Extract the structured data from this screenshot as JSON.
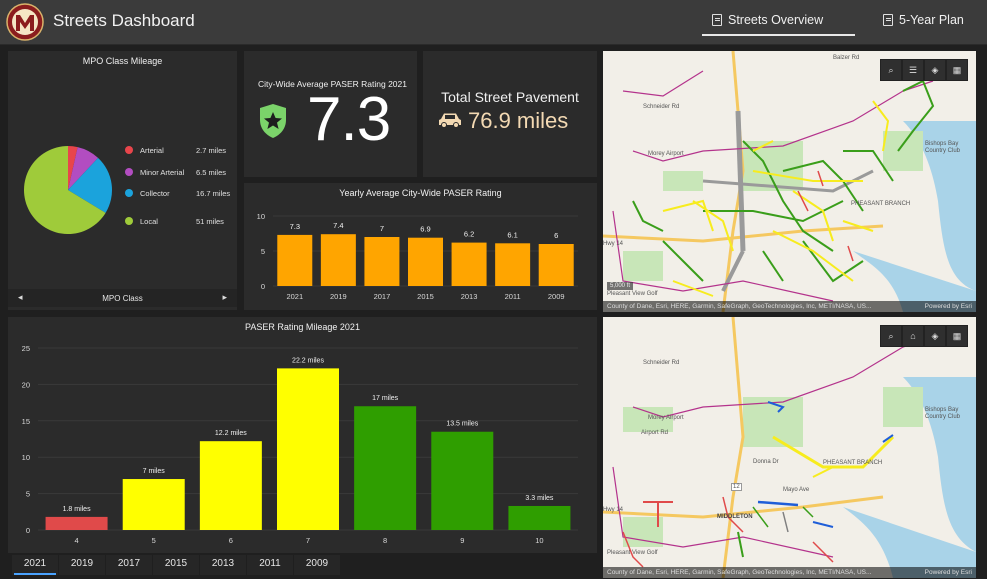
{
  "app": {
    "title": "Streets Dashboard"
  },
  "nav": {
    "tabs": [
      {
        "label": "Streets Overview",
        "active": true
      },
      {
        "label": "5-Year Plan",
        "active": false
      }
    ]
  },
  "mpo_panel": {
    "title": "MPO Class Mileage",
    "footer_label": "MPO Class",
    "legend": [
      {
        "label": "Arterial",
        "value": "2.7 miles",
        "color": "#e8454b"
      },
      {
        "label": "Minor Arterial",
        "value": "6.5 miles",
        "color": "#b24dc1"
      },
      {
        "label": "Collector",
        "value": "16.7 miles",
        "color": "#1ba3dc"
      },
      {
        "label": "Local",
        "value": "51 miles",
        "color": "#9fcb3a"
      }
    ]
  },
  "kpi_paser": {
    "subtitle": "City-Wide Average PASER Rating 2021",
    "value": "7.3",
    "icon": "shield-star-icon",
    "icon_color": "#7bd36a"
  },
  "kpi_pavement": {
    "title": "Total Street Pavement",
    "value": "76.9 miles",
    "icon": "car-icon"
  },
  "map_top": {
    "attribution": "County of Dane, Esri, HERE, Garmin, SafeGraph, GeoTechnologies, Inc, METI/NASA, US...",
    "powered": "Powered by Esri",
    "scale": "5,000 ft",
    "labels": [
      "Balzer Rd",
      "Schneider Rd",
      "Morey Airport",
      "Bishops Bay Country Club",
      "PHEASANT BRANCH",
      "Hwy 14",
      "Pleasant View Golf"
    ]
  },
  "map_bottom": {
    "attribution": "County of Dane, Esri, HERE, Garmin, SafeGraph, GeoTechnologies, Inc, METI/NASA, US...",
    "powered": "Powered by Esri",
    "labels": [
      "Schneider Rd",
      "Morey Airport",
      "Airport Rd",
      "Bishops Bay Country Club",
      "Donna Dr",
      "PHEASANT BRANCH",
      "Mayo Ave",
      "MIDDLETON",
      "Hwy 14",
      "Pleasant View Golf",
      "12"
    ]
  },
  "chart_data": [
    {
      "type": "pie",
      "title": "MPO Class Mileage",
      "categories": [
        "Arterial",
        "Minor Arterial",
        "Collector",
        "Local"
      ],
      "values": [
        2.7,
        6.5,
        16.7,
        51
      ],
      "colors": [
        "#e8454b",
        "#b24dc1",
        "#1ba3dc",
        "#9fcb3a"
      ]
    },
    {
      "type": "bar",
      "title": "Yearly Average City-Wide PASER Rating",
      "categories": [
        "2021",
        "2019",
        "2017",
        "2015",
        "2013",
        "2011",
        "2009"
      ],
      "values": [
        7.3,
        7.4,
        7,
        6.9,
        6.2,
        6.1,
        6
      ],
      "labels": [
        "7.3",
        "7.4",
        "7",
        "6.9",
        "6.2",
        "6.1",
        "6"
      ],
      "ylim": [
        0,
        10
      ],
      "yticks": [
        "0",
        "5",
        "10"
      ],
      "color": "#ffa500"
    },
    {
      "type": "bar",
      "title": "PASER Rating Mileage 2021",
      "categories": [
        "4",
        "5",
        "6",
        "7",
        "8",
        "9",
        "10"
      ],
      "values": [
        1.8,
        7,
        12.2,
        22.2,
        17,
        13.5,
        3.3
      ],
      "labels": [
        "1.8 miles",
        "7 miles",
        "12.2 miles",
        "22.2 miles",
        "17 miles",
        "13.5 miles",
        "3.3 miles"
      ],
      "colors": [
        "#e04a4a",
        "#ffff00",
        "#ffff00",
        "#ffff00",
        "#2f9e00",
        "#2f9e00",
        "#2f9e00"
      ],
      "ylim": [
        0,
        25
      ],
      "yticks": [
        "0",
        "5",
        "10",
        "15",
        "20",
        "25"
      ]
    }
  ],
  "year_tabs": [
    "2021",
    "2019",
    "2017",
    "2015",
    "2013",
    "2011",
    "2009"
  ]
}
